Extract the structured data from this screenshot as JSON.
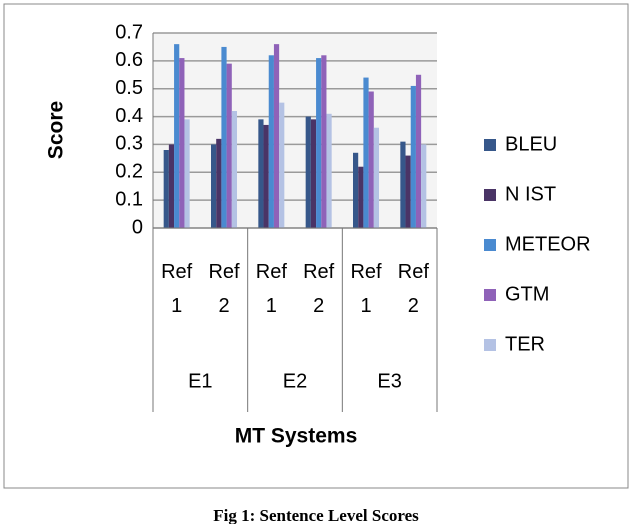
{
  "chart_data": {
    "type": "bar",
    "y_label": "Score",
    "x_label": "MT Systems",
    "caption": "Fig 1: Sentence Level Scores",
    "categories": [
      "Ref 1",
      "Ref 2",
      "Ref 1",
      "Ref 2",
      "Ref 1",
      "Ref 2"
    ],
    "groups": [
      "E1",
      "E2",
      "E3"
    ],
    "series": [
      {
        "name": "BLEU",
        "color": "#36578a",
        "values": [
          0.28,
          0.3,
          0.39,
          0.4,
          0.27,
          0.31
        ]
      },
      {
        "name": "N IST",
        "color": "#4a3466",
        "values": [
          0.3,
          0.32,
          0.37,
          0.39,
          0.22,
          0.26
        ]
      },
      {
        "name": "METEOR",
        "color": "#4a8ad0",
        "values": [
          0.66,
          0.65,
          0.62,
          0.61,
          0.54,
          0.51
        ]
      },
      {
        "name": "GTM",
        "color": "#8f62b8",
        "values": [
          0.61,
          0.59,
          0.66,
          0.62,
          0.49,
          0.55
        ]
      },
      {
        "name": "TER",
        "color": "#b4c2e4",
        "values": [
          0.39,
          0.42,
          0.45,
          0.41,
          0.36,
          0.3
        ]
      }
    ],
    "ylim": [
      0,
      0.7
    ],
    "yticks": [
      0,
      0.1,
      0.2,
      0.3,
      0.4,
      0.5,
      0.6,
      0.7
    ],
    "grid": true,
    "legend": "right"
  }
}
